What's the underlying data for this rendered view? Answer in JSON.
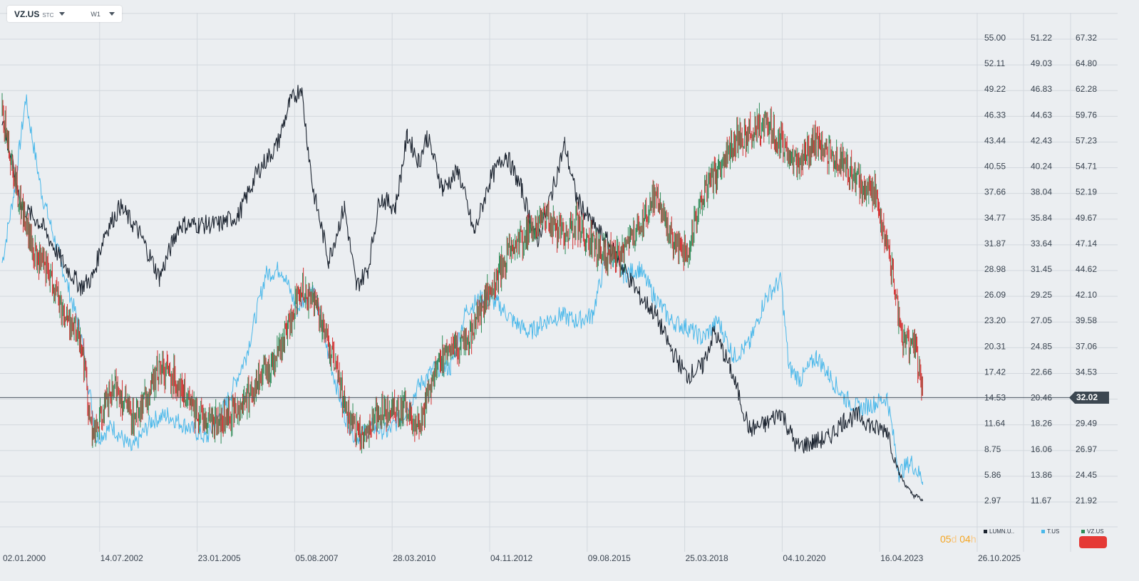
{
  "toolbar": {
    "symbol": "VZ.US",
    "type": "STC",
    "timeframe": "W1"
  },
  "countdown": {
    "days": "05",
    "d": "d",
    "hours": "04",
    "h": "h"
  },
  "last_price": "32.02",
  "colors": {
    "lumn": "#1c2430",
    "t": "#4ab8ea",
    "vz_up": "#2e8b57",
    "vz_down": "#d32f2f",
    "axis_text": "#3a4450",
    "grid": "#d3d8de",
    "price_line": "#4a5560"
  },
  "chart_data": {
    "type": "line",
    "title": "",
    "x_ticks": [
      "02.01.2000",
      "14.07.2002",
      "23.01.2005",
      "05.08.2007",
      "28.03.2010",
      "04.11.2012",
      "09.08.2015",
      "25.03.2018",
      "04.10.2020",
      "16.04.2023",
      "26.10.2025"
    ],
    "axes": [
      {
        "id": "lumn",
        "ticks": [
          "55.00",
          "52.11",
          "49.22",
          "46.33",
          "43.44",
          "40.55",
          "37.66",
          "34.77",
          "31.87",
          "28.98",
          "26.09",
          "23.20",
          "20.31",
          "17.42",
          "14.53",
          "11.64",
          "8.75",
          "5.86",
          "2.97"
        ],
        "range": [
          2.97,
          55.0
        ]
      },
      {
        "id": "t",
        "ticks": [
          "51.22",
          "49.03",
          "46.83",
          "44.63",
          "42.43",
          "40.24",
          "38.04",
          "35.84",
          "33.64",
          "31.45",
          "29.25",
          "27.05",
          "24.85",
          "22.66",
          "20.46",
          "18.26",
          "16.06",
          "13.86",
          "11.67"
        ],
        "range": [
          11.67,
          51.22
        ]
      },
      {
        "id": "vz",
        "ticks": [
          "67.32",
          "64.80",
          "62.28",
          "59.76",
          "57.23",
          "54.71",
          "52.19",
          "49.67",
          "47.14",
          "44.62",
          "42.10",
          "39.58",
          "37.06",
          "34.53",
          "32.02",
          "29.49",
          "26.97",
          "24.45",
          "21.92"
        ],
        "range": [
          21.92,
          67.32
        ]
      }
    ],
    "series": [
      {
        "name": "LUMN.U..",
        "axis": "lumn",
        "style": "line",
        "x": [
          2000.0,
          2000.5,
          2001.0,
          2001.5,
          2002.0,
          2002.3,
          2002.6,
          2003.0,
          2003.5,
          2004.0,
          2004.5,
          2005.0,
          2005.5,
          2006.0,
          2006.5,
          2007.0,
          2007.3,
          2007.6,
          2007.9,
          2008.3,
          2008.7,
          2009.0,
          2009.3,
          2009.6,
          2010.0,
          2010.3,
          2010.6,
          2010.8,
          2011.2,
          2011.6,
          2012.0,
          2012.4,
          2012.8,
          2013.2,
          2013.6,
          2014.0,
          2014.3,
          2014.6,
          2015.0,
          2015.4,
          2015.8,
          2016.2,
          2016.6,
          2017.0,
          2017.4,
          2017.8,
          2018.1,
          2018.5,
          2019.0,
          2019.4,
          2019.8,
          2020.2,
          2020.6,
          2021.0,
          2021.4,
          2021.8,
          2022.2,
          2022.5,
          2022.8,
          2023.1,
          2023.4
        ],
        "y": [
          46.0,
          36.0,
          34.0,
          30.0,
          27.0,
          28.0,
          33.0,
          36.0,
          33.0,
          28.0,
          34.0,
          34.0,
          34.0,
          35.0,
          40.0,
          43.0,
          47.5,
          49.5,
          38.0,
          30.0,
          36.0,
          27.0,
          29.0,
          37.0,
          36.0,
          44.0,
          41.0,
          44.0,
          38.0,
          40.0,
          33.0,
          39.0,
          42.0,
          38.0,
          32.0,
          38.0,
          43.0,
          37.0,
          34.0,
          32.0,
          29.0,
          26.0,
          24.0,
          20.0,
          17.0,
          18.0,
          22.0,
          18.0,
          11.0,
          11.5,
          13.0,
          9.0,
          9.5,
          10.0,
          12.0,
          12.5,
          11.0,
          11.0,
          6.0,
          3.8,
          3.0
        ]
      },
      {
        "name": "T.US",
        "axis": "t",
        "style": "line",
        "x": [
          2000.0,
          2000.3,
          2000.6,
          2001.0,
          2001.5,
          2002.0,
          2002.4,
          2002.8,
          2003.3,
          2003.8,
          2004.2,
          2004.7,
          2005.2,
          2005.7,
          2006.2,
          2006.7,
          2007.1,
          2007.5,
          2007.9,
          2008.3,
          2008.7,
          2009.0,
          2009.4,
          2009.8,
          2010.2,
          2010.6,
          2011.0,
          2011.4,
          2011.8,
          2012.2,
          2012.6,
          2013.0,
          2013.4,
          2013.8,
          2014.2,
          2014.6,
          2015.0,
          2015.4,
          2015.8,
          2016.2,
          2016.6,
          2017.0,
          2017.4,
          2017.8,
          2018.2,
          2018.6,
          2019.0,
          2019.4,
          2019.8,
          2020.0,
          2020.3,
          2020.7,
          2021.0,
          2021.4,
          2021.8,
          2022.2,
          2022.5,
          2022.8,
          2023.1,
          2023.4
        ],
        "y": [
          32.0,
          38.0,
          46.0,
          38.0,
          32.0,
          26.0,
          17.0,
          18.0,
          16.0,
          18.5,
          19.0,
          18.0,
          17.0,
          20.0,
          24.0,
          31.0,
          31.5,
          28.0,
          30.0,
          24.0,
          19.0,
          17.0,
          18.0,
          17.5,
          19.0,
          21.5,
          23.0,
          23.0,
          28.0,
          29.0,
          28.5,
          27.0,
          26.0,
          27.0,
          27.5,
          27.0,
          27.5,
          33.0,
          31.0,
          31.5,
          29.0,
          27.0,
          26.5,
          25.5,
          27.0,
          24.0,
          25.0,
          29.0,
          30.5,
          23.0,
          22.0,
          24.0,
          22.5,
          20.5,
          19.5,
          20.0,
          20.5,
          14.0,
          15.0,
          13.5
        ]
      },
      {
        "name": "VZ.US",
        "axis": "vz",
        "style": "candles",
        "x": [
          2000.0,
          2000.4,
          2000.8,
          2001.2,
          2001.6,
          2002.0,
          2002.3,
          2002.6,
          2002.9,
          2003.3,
          2003.7,
          2004.0,
          2004.4,
          2004.8,
          2005.2,
          2005.6,
          2006.0,
          2006.4,
          2006.8,
          2007.2,
          2007.6,
          2008.0,
          2008.4,
          2008.8,
          2009.1,
          2009.5,
          2009.9,
          2010.2,
          2010.6,
          2011.0,
          2011.4,
          2011.8,
          2012.2,
          2012.6,
          2013.0,
          2013.4,
          2013.8,
          2014.2,
          2014.6,
          2015.0,
          2015.4,
          2015.8,
          2016.2,
          2016.6,
          2017.0,
          2017.4,
          2017.8,
          2018.2,
          2018.6,
          2019.0,
          2019.4,
          2019.8,
          2020.2,
          2020.6,
          2021.0,
          2021.4,
          2021.8,
          2022.2,
          2022.6,
          2022.9,
          2023.2,
          2023.4
        ],
        "y": [
          60.0,
          52.0,
          46.0,
          44.0,
          40.0,
          38.0,
          28.0,
          31.0,
          33.0,
          30.0,
          32.0,
          35.0,
          34.0,
          31.0,
          30.0,
          29.5,
          31.0,
          33.0,
          35.0,
          38.0,
          43.0,
          41.0,
          36.0,
          30.0,
          28.0,
          30.0,
          31.0,
          31.0,
          29.0,
          35.0,
          37.0,
          37.0,
          41.0,
          44.0,
          47.0,
          48.0,
          50.0,
          48.0,
          49.0,
          47.0,
          46.0,
          46.0,
          49.0,
          52.0,
          48.0,
          46.0,
          52.0,
          54.0,
          57.0,
          58.0,
          59.0,
          57.0,
          55.0,
          57.0,
          56.0,
          55.0,
          53.0,
          52.0,
          45.0,
          37.0,
          38.0,
          32.0
        ]
      }
    ],
    "last_value": 32.02,
    "grid": true,
    "legend": "bottom-right"
  }
}
